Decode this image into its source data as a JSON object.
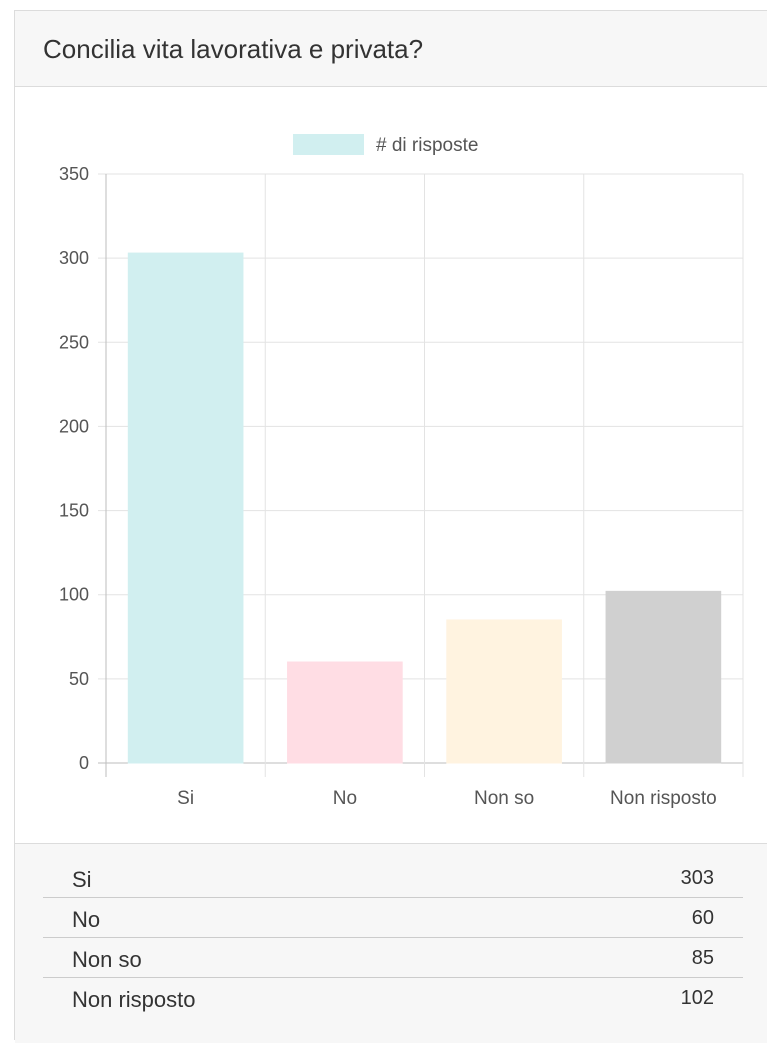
{
  "card": {
    "title": "Concilia vita lavorativa e privata?"
  },
  "chart_data": {
    "type": "bar",
    "categories": [
      "Si",
      "No",
      "Non so",
      "Non risposto"
    ],
    "series": [
      {
        "name": "# di risposte",
        "values": [
          303,
          60,
          85,
          102
        ]
      }
    ],
    "bar_colors": [
      "#d1eff0",
      "#ffdde4",
      "#fff3e0",
      "#d0d0d0"
    ],
    "legend_color": "#d1eff0",
    "ylim": [
      0,
      350
    ],
    "yticks": [
      0,
      50,
      100,
      150,
      200,
      250,
      300,
      350
    ],
    "grid": true,
    "legend_position": "top-center"
  },
  "table": {
    "rows": [
      {
        "label": "Si",
        "value": "303"
      },
      {
        "label": "No",
        "value": "60"
      },
      {
        "label": "Non so",
        "value": "85"
      },
      {
        "label": "Non risposto",
        "value": "102"
      }
    ]
  }
}
